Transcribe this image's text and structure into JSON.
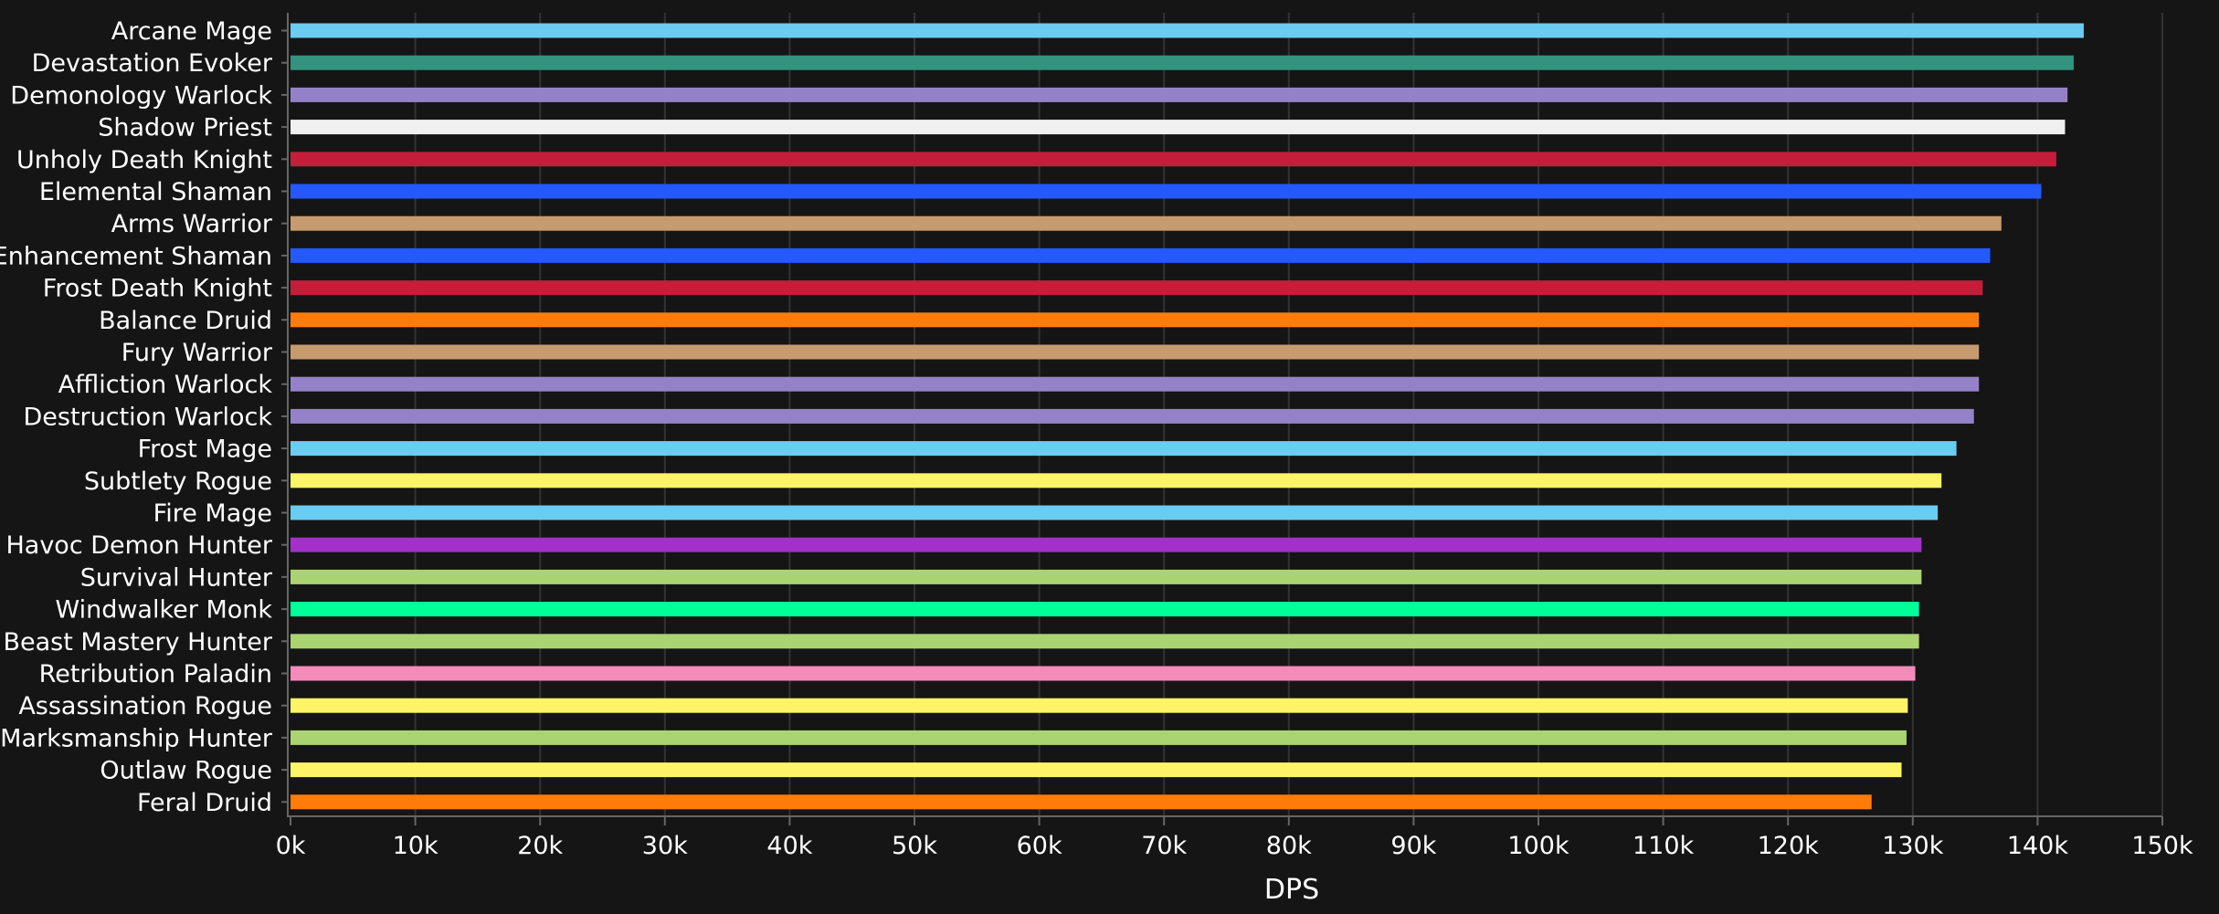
{
  "chart_data": {
    "type": "bar",
    "orientation": "horizontal",
    "title": "",
    "xlabel": "DPS",
    "ylabel": "",
    "xlim": [
      0,
      150000
    ],
    "x_ticks": [
      0,
      10000,
      20000,
      30000,
      40000,
      50000,
      60000,
      70000,
      80000,
      90000,
      100000,
      110000,
      120000,
      130000,
      140000,
      150000
    ],
    "x_tick_labels": [
      "0k",
      "10k",
      "20k",
      "30k",
      "40k",
      "50k",
      "60k",
      "70k",
      "80k",
      "90k",
      "100k",
      "110k",
      "120k",
      "130k",
      "140k",
      "150k"
    ],
    "grid": "vertical",
    "legend": "none",
    "categories": [
      "Arcane Mage",
      "Devastation Evoker",
      "Demonology Warlock",
      "Shadow Priest",
      "Unholy Death Knight",
      "Elemental Shaman",
      "Arms Warrior",
      "Enhancement Shaman",
      "Frost Death Knight",
      "Balance Druid",
      "Fury Warrior",
      "Affliction Warlock",
      "Destruction Warlock",
      "Frost Mage",
      "Subtlety Rogue",
      "Fire Mage",
      "Havoc Demon Hunter",
      "Survival Hunter",
      "Windwalker Monk",
      "Beast Mastery Hunter",
      "Retribution Paladin",
      "Assassination Rogue",
      "Marksmanship Hunter",
      "Outlaw Rogue",
      "Feral Druid"
    ],
    "values": [
      143700,
      142900,
      142400,
      142200,
      141500,
      140300,
      137100,
      136200,
      135600,
      135300,
      135300,
      135300,
      134900,
      133500,
      132300,
      132000,
      130700,
      130700,
      130500,
      130500,
      130200,
      129600,
      129500,
      129100,
      126700
    ],
    "colors": [
      "#69CCF0",
      "#33937F",
      "#9482C9",
      "#F0F0F0",
      "#C41E3A",
      "#2459FF",
      "#C69B6D",
      "#2459FF",
      "#C41E3A",
      "#FF7C0A",
      "#C69B6D",
      "#9482C9",
      "#9482C9",
      "#69CCF0",
      "#FFF468",
      "#69CCF0",
      "#A330C9",
      "#AAD372",
      "#00FF98",
      "#AAD372",
      "#F48CBA",
      "#FFF468",
      "#AAD372",
      "#FFF468",
      "#FF7C0A"
    ]
  },
  "theme": {
    "background": "#151515",
    "grid_color": "#333333",
    "axis_color": "#666666",
    "text_color": "#ffffff"
  }
}
